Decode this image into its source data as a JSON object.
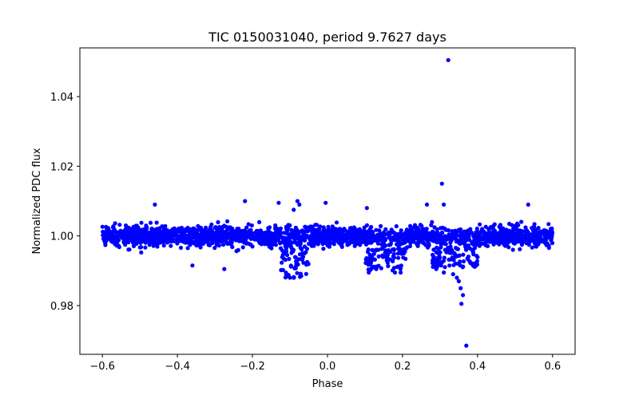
{
  "chart_data": {
    "type": "scatter",
    "title": "TIC 0150031040, period 9.7627 days",
    "xlabel": "Phase",
    "ylabel": "Normalized PDC flux",
    "xlim": [
      -0.66,
      0.66
    ],
    "ylim": [
      0.966,
      1.054
    ],
    "x_ticks": [
      -0.6,
      -0.4,
      -0.2,
      0.0,
      0.2,
      0.4,
      0.6
    ],
    "x_tick_labels": [
      "−0.6",
      "−0.4",
      "−0.2",
      "0.0",
      "0.2",
      "0.4",
      "0.6"
    ],
    "y_ticks": [
      0.98,
      1.0,
      1.02,
      1.04
    ],
    "y_tick_labels": [
      "0.98",
      "1.00",
      "1.02",
      "1.04"
    ],
    "grid": false,
    "marker_color": "#0000ff",
    "series": [
      {
        "phase_range": [
          -0.6,
          0.6
        ],
        "baseline_flux": 1.0,
        "scatter_band": [
          0.994,
          1.006
        ],
        "dips": [
          {
            "phase_range": [
              -0.125,
              -0.05
            ],
            "min_flux": 0.988
          },
          {
            "phase_range": [
              0.1,
              0.21
            ],
            "min_flux": 0.99
          },
          {
            "phase_range": [
              0.28,
              0.4
            ],
            "min_flux": 0.991
          }
        ],
        "outliers": [
          {
            "x": 0.322,
            "y": 1.0505
          },
          {
            "x": 0.305,
            "y": 1.015
          },
          {
            "x": 0.37,
            "y": 0.9685
          },
          {
            "x": 0.357,
            "y": 0.9805
          },
          {
            "x": 0.361,
            "y": 0.983
          },
          {
            "x": 0.355,
            "y": 0.985
          },
          {
            "x": 0.35,
            "y": 0.987
          },
          {
            "x": 0.345,
            "y": 0.988
          },
          {
            "x": 0.335,
            "y": 0.989
          },
          {
            "x": 0.31,
            "y": 0.9895
          },
          {
            "x": 0.29,
            "y": 0.9905
          },
          {
            "x": 0.325,
            "y": 0.9915
          },
          {
            "x": -0.22,
            "y": 1.01
          },
          {
            "x": -0.08,
            "y": 1.01
          },
          {
            "x": -0.075,
            "y": 1.009
          },
          {
            "x": -0.005,
            "y": 1.0095
          },
          {
            "x": -0.13,
            "y": 1.0095
          },
          {
            "x": 0.265,
            "y": 1.009
          },
          {
            "x": 0.31,
            "y": 1.009
          },
          {
            "x": -0.46,
            "y": 1.009
          },
          {
            "x": 0.535,
            "y": 1.009
          },
          {
            "x": 0.105,
            "y": 1.008
          },
          {
            "x": -0.09,
            "y": 1.0075
          },
          {
            "x": -0.1,
            "y": 0.988
          },
          {
            "x": -0.09,
            "y": 0.988
          },
          {
            "x": -0.11,
            "y": 0.989
          },
          {
            "x": -0.07,
            "y": 0.9885
          },
          {
            "x": -0.36,
            "y": 0.9915
          },
          {
            "x": -0.275,
            "y": 0.9905
          },
          {
            "x": 0.11,
            "y": 0.9895
          },
          {
            "x": 0.18,
            "y": 0.9895
          },
          {
            "x": 0.195,
            "y": 0.9895
          }
        ]
      }
    ]
  }
}
